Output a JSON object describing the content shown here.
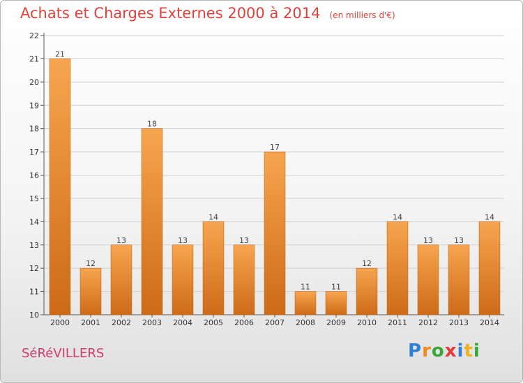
{
  "chart_data": {
    "type": "bar",
    "title": "Achats et Charges Externes 2000 à 2014",
    "unit_note": "(en milliers d'€)",
    "categories": [
      "2000",
      "2001",
      "2002",
      "2003",
      "2004",
      "2005",
      "2006",
      "2007",
      "2008",
      "2009",
      "2010",
      "2011",
      "2012",
      "2013",
      "2014"
    ],
    "values": [
      21,
      12,
      13,
      18,
      13,
      14,
      13,
      17,
      11,
      11,
      12,
      14,
      13,
      13,
      14
    ],
    "ylim": [
      10,
      22
    ],
    "yticks": [
      10,
      11,
      12,
      13,
      14,
      15,
      16,
      17,
      18,
      19,
      20,
      21,
      22
    ],
    "grid": true,
    "legend": "none",
    "bar_color_top": "#f7a550",
    "bar_color_bottom": "#cd6a18",
    "title_color": "#e0413a"
  },
  "footer": {
    "town": "SéRéVILLERS",
    "town_color": "#d33a6b"
  },
  "logo": {
    "letters": [
      "P",
      "r",
      "o",
      "x",
      "i",
      "t",
      "i"
    ],
    "colors": [
      "#2f7fd6",
      "#f08a1c",
      "#3aa63a",
      "#e23a3a",
      "#2f7fd6",
      "#f0b21c",
      "#3aa63a"
    ]
  }
}
